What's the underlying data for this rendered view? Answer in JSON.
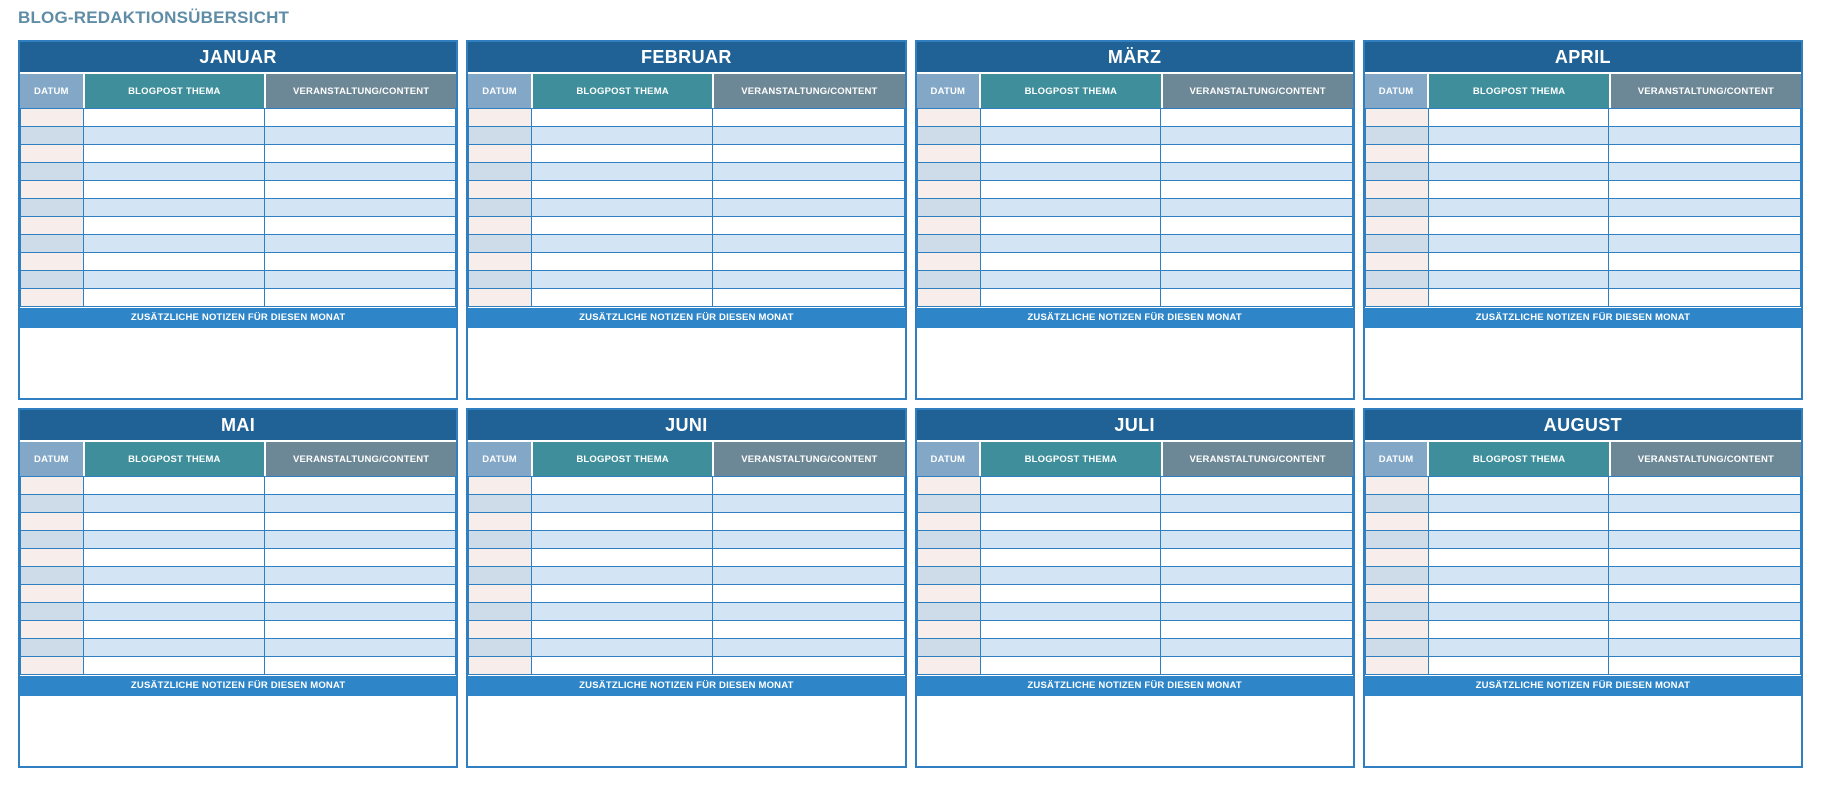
{
  "page": {
    "title": "BLOG-REDAKTIONSÜBERSICHT"
  },
  "columns": {
    "date": "DATUM",
    "topic": "BLOGPOST THEMA",
    "event": "VERANSTALTUNG/CONTENT"
  },
  "notes_label": "ZUSÄTZLICHE NOTIZEN FÜR DIESEN MONAT",
  "months": [
    {
      "name": "JANUAR"
    },
    {
      "name": "FEBRUAR"
    },
    {
      "name": "MÄRZ"
    },
    {
      "name": "APRIL"
    },
    {
      "name": "MAI"
    },
    {
      "name": "JUNI"
    },
    {
      "name": "JULI"
    },
    {
      "name": "AUGUST"
    }
  ],
  "rows_per_month": 11,
  "row_cells_empty": [
    "",
    "",
    ""
  ],
  "notes_area_value": "",
  "colors": {
    "panel-border": "#2f7fc1",
    "month-bg": "#206295",
    "date-head-bg": "#82a7c7",
    "topic-head-bg": "#3e8f9b",
    "event-head-bg": "#6c8795",
    "notes-bg": "#2e86c8",
    "row-odd-date": "#f7eeeb",
    "row-odd-cell": "#ffffff",
    "row-even-date": "#cedce9",
    "row-even-cell": "#d3e5f5",
    "title-color": "#5f8da6"
  }
}
